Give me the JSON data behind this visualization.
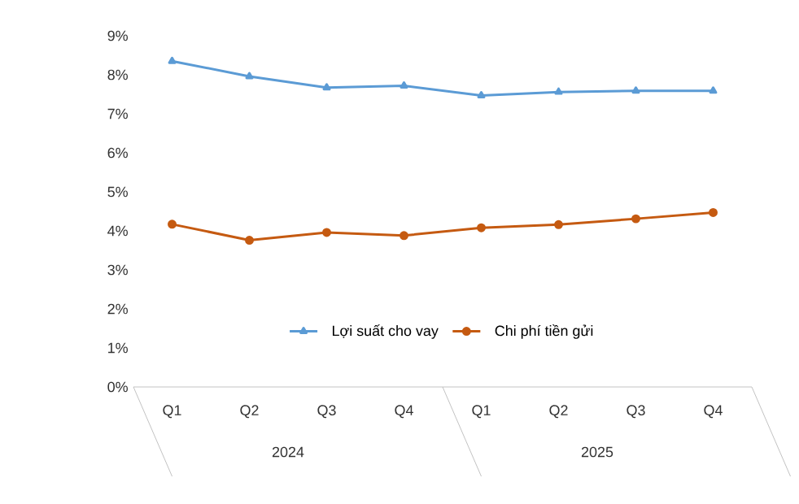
{
  "chart_data": {
    "type": "line",
    "categories": [
      "Q1",
      "Q2",
      "Q3",
      "Q4",
      "Q1",
      "Q2",
      "Q3",
      "Q4"
    ],
    "series": [
      {
        "name": "Lợi suất cho vay",
        "color": "#5b9bd5",
        "marker": "triangle",
        "values": [
          8.35,
          7.96,
          7.67,
          7.72,
          7.47,
          7.56,
          7.59,
          7.59
        ]
      },
      {
        "name": "Chi phí tiền gửi",
        "color": "#c55a11",
        "marker": "circle",
        "values": [
          4.17,
          3.76,
          3.96,
          3.88,
          4.08,
          4.16,
          4.31,
          4.47
        ]
      }
    ],
    "ylim": [
      0,
      9
    ],
    "yticks": [
      {
        "value": 0,
        "label": "0%"
      },
      {
        "value": 1,
        "label": "1%"
      },
      {
        "value": 2,
        "label": "2%"
      },
      {
        "value": 3,
        "label": "3%"
      },
      {
        "value": 4,
        "label": "4%"
      },
      {
        "value": 5,
        "label": "5%"
      },
      {
        "value": 6,
        "label": "6%"
      },
      {
        "value": 7,
        "label": "7%"
      },
      {
        "value": 8,
        "label": "8%"
      },
      {
        "value": 9,
        "label": "9%"
      }
    ],
    "annotations": [
      "2024",
      "2025"
    ],
    "legend": "bottom",
    "grid": false
  }
}
